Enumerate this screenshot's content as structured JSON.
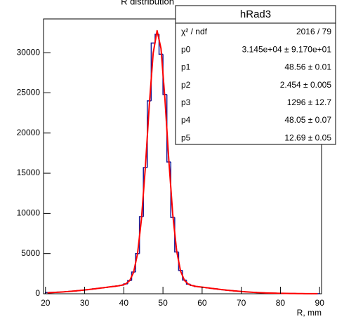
{
  "chart_data": {
    "type": "histogram",
    "title": "R distribution",
    "x_label": "R, mm",
    "color": "#1a1a96",
    "bins": [
      20,
      21,
      22,
      23,
      24,
      25,
      26,
      27,
      28,
      29,
      30,
      31,
      32,
      33,
      34,
      35,
      36,
      37,
      38,
      39,
      40,
      41,
      42,
      43,
      44,
      45,
      46,
      47,
      48,
      49,
      50,
      51,
      52,
      53,
      54,
      55,
      56,
      57,
      58,
      59,
      60,
      61,
      62,
      63,
      64,
      65,
      66,
      67,
      68,
      69,
      70,
      71,
      72,
      73,
      74,
      75,
      76,
      77,
      78,
      79,
      80,
      81,
      82,
      83,
      84,
      85,
      86,
      87,
      88,
      89,
      90
    ],
    "counts": [
      150,
      170,
      190,
      210,
      240,
      270,
      300,
      340,
      390,
      440,
      490,
      550,
      610,
      670,
      730,
      790,
      850,
      920,
      980,
      1060,
      1230,
      1650,
      2700,
      5000,
      9600,
      15700,
      24000,
      31200,
      32300,
      29800,
      24800,
      16400,
      9500,
      5200,
      2900,
      1700,
      1200,
      1020,
      910,
      850,
      790,
      730,
      670,
      610,
      550,
      490,
      440,
      390,
      345,
      300,
      265,
      230,
      195,
      170,
      145,
      120,
      100,
      86,
      72,
      60,
      50,
      41,
      34,
      28,
      23,
      19,
      15,
      12,
      10,
      8
    ],
    "fit": {
      "color": "#ff0000",
      "x": [
        20.5,
        21.5,
        22.5,
        23.5,
        24.5,
        25.5,
        26.5,
        27.5,
        28.5,
        29.5,
        30.5,
        31.5,
        32.5,
        33.5,
        34.5,
        35.5,
        36.5,
        37.5,
        38.5,
        39.5,
        40.5,
        41.5,
        42.5,
        43.5,
        44.5,
        45.5,
        46.5,
        47.5,
        48.5,
        49.5,
        50.5,
        51.5,
        52.5,
        53.5,
        54.5,
        55.5,
        56.5,
        57.5,
        58.5,
        59.5,
        60.5,
        61.5,
        62.5,
        63.5,
        64.5,
        65.5,
        66.5,
        67.5,
        68.5,
        69.5,
        70.5,
        71.5,
        72.5,
        73.5,
        74.5,
        75.5,
        76.5,
        77.5,
        78.5,
        79.5,
        80.5,
        81.5,
        82.5,
        83.5,
        84.5,
        85.5,
        86.5,
        87.5,
        88.5,
        89.5
      ],
      "values": [
        123,
        145,
        171,
        199,
        232,
        267,
        306,
        349,
        395,
        445,
        498,
        554,
        612,
        672,
        733,
        795,
        857,
        917,
        976,
        1068,
        1229,
        1635,
        2668,
        4968,
        9254,
        15710,
        23406,
        29945,
        32735,
        30518,
        24272,
        16589,
        9877,
        5324,
        2810,
        1659,
        1195,
        1012,
        911,
        851,
        792,
        730,
        668,
        608,
        550,
        494,
        441,
        391,
        345,
        302,
        263,
        228,
        196,
        168,
        143,
        121,
        102,
        86,
        72,
        60,
        50,
        41,
        34,
        28,
        23,
        19,
        15,
        12,
        10,
        8
      ]
    },
    "xlim": [
      19.5,
      90.5
    ],
    "ylim": [
      0,
      34200
    ],
    "xticks": [
      20,
      30,
      40,
      50,
      60,
      70,
      80,
      90
    ],
    "yticks": [
      0,
      5000,
      10000,
      15000,
      20000,
      25000,
      30000
    ],
    "stats": {
      "title": "hRad3",
      "rows": [
        [
          "χ² / ndf",
          "2016 / 79"
        ],
        [
          "p0",
          "3.145e+04 ± 9.170e+01"
        ],
        [
          "p1",
          "48.56 ± 0.01"
        ],
        [
          "p2",
          "2.454 ± 0.005"
        ],
        [
          "p3",
          "1296 ± 12.7"
        ],
        [
          "p4",
          "48.05 ± 0.07"
        ],
        [
          "p5",
          "12.69 ± 0.05"
        ]
      ]
    }
  }
}
